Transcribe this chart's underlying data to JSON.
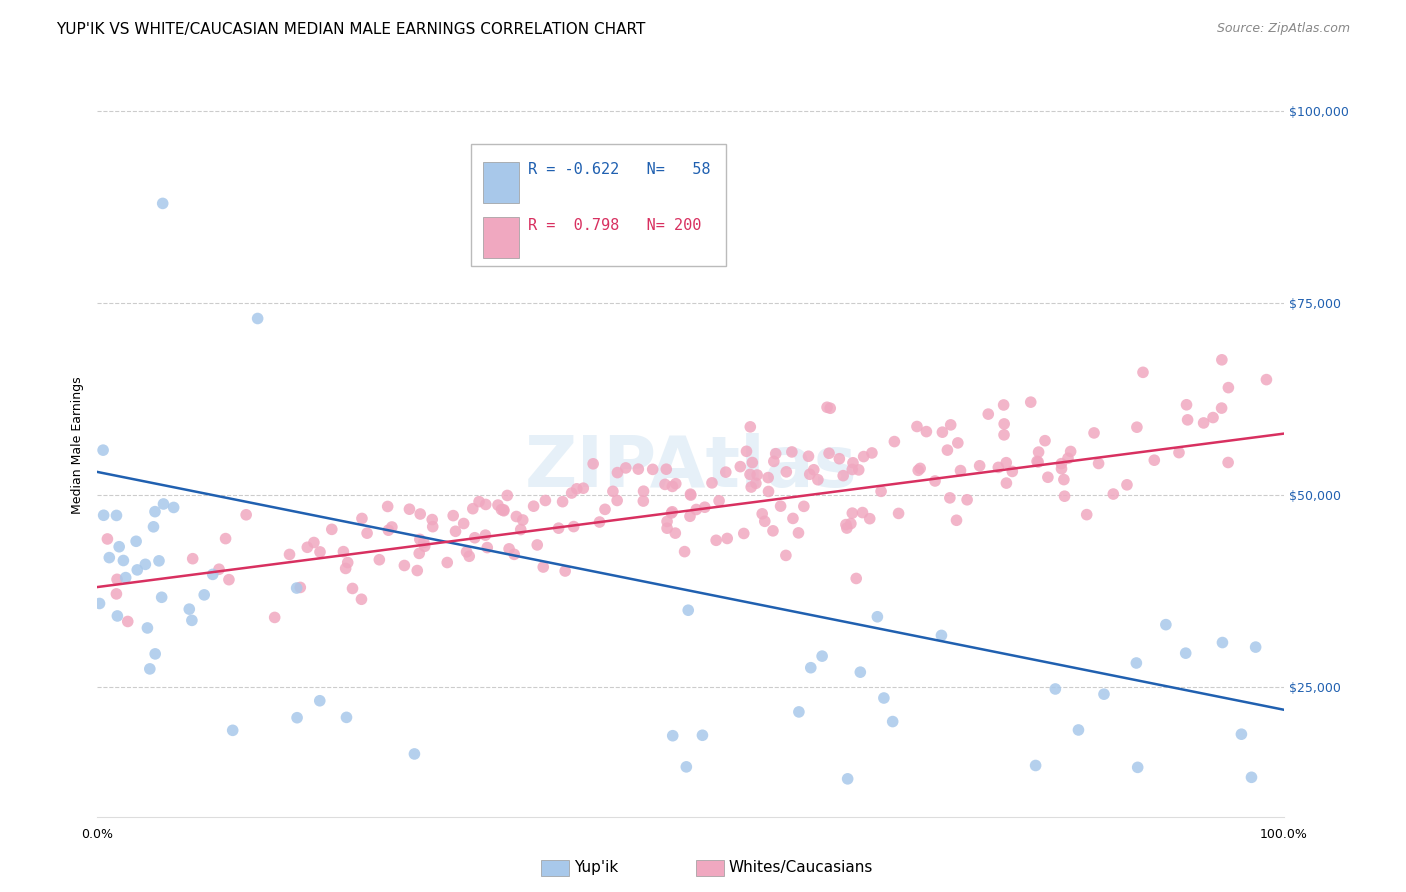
{
  "title": "YUP'IK VS WHITE/CAUCASIAN MEDIAN MALE EARNINGS CORRELATION CHART",
  "source": "Source: ZipAtlas.com",
  "ylabel": "Median Male Earnings",
  "yticks": [
    25000,
    50000,
    75000,
    100000
  ],
  "ytick_labels": [
    "$25,000",
    "$50,000",
    "$75,000",
    "$100,000"
  ],
  "xmin": 0.0,
  "xmax": 1.0,
  "ymin": 8000,
  "ymax": 105000,
  "legend_labels": [
    "Yup'ik",
    "Whites/Caucasians"
  ],
  "blue_R": -0.622,
  "blue_N": 58,
  "pink_R": 0.798,
  "pink_N": 200,
  "blue_color": "#a8c8ea",
  "pink_color": "#f0a8c0",
  "blue_line_color": "#2060b0",
  "pink_line_color": "#d83060",
  "watermark": "ZIPAtlas",
  "blue_line_y0": 53000,
  "blue_line_y1": 22000,
  "pink_line_y0": 38000,
  "pink_line_y1": 58000,
  "background_color": "#ffffff",
  "grid_color": "#cccccc",
  "title_fontsize": 11,
  "axis_label_fontsize": 9,
  "tick_fontsize": 9,
  "legend_fontsize": 11,
  "source_fontsize": 9,
  "dot_size": 70
}
